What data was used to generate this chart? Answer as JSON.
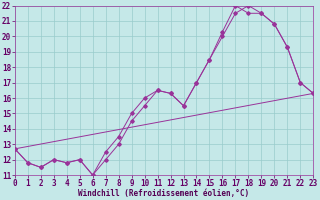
{
  "xlabel": "Windchill (Refroidissement éolien,°C)",
  "background_color": "#c5e8e8",
  "grid_color": "#99cccc",
  "line_color": "#993399",
  "xlim": [
    0,
    23
  ],
  "ylim": [
    11,
    22
  ],
  "yticks": [
    11,
    12,
    13,
    14,
    15,
    16,
    17,
    18,
    19,
    20,
    21,
    22
  ],
  "xticks": [
    0,
    1,
    2,
    3,
    4,
    5,
    6,
    7,
    8,
    9,
    10,
    11,
    12,
    13,
    14,
    15,
    16,
    17,
    18,
    19,
    20,
    21,
    22,
    23
  ],
  "line1_x": [
    0,
    1,
    2,
    3,
    4,
    5,
    6,
    7,
    8,
    9,
    10,
    11,
    12,
    13,
    14,
    15,
    16,
    17,
    18,
    19,
    20,
    21,
    22,
    23
  ],
  "line1_y": [
    12.7,
    11.8,
    11.5,
    12.0,
    11.8,
    12.0,
    11.0,
    12.0,
    13.0,
    14.5,
    15.5,
    16.5,
    16.3,
    15.5,
    17.0,
    18.5,
    20.3,
    22.0,
    21.5,
    21.5,
    20.8,
    19.3,
    17.0,
    16.3
  ],
  "line2_x": [
    0,
    1,
    2,
    3,
    4,
    5,
    6,
    7,
    8,
    9,
    10,
    11,
    12,
    13,
    14,
    15,
    16,
    17,
    18,
    19,
    20,
    21,
    22,
    23
  ],
  "line2_y": [
    12.7,
    11.8,
    11.5,
    12.0,
    11.8,
    12.0,
    11.0,
    12.5,
    13.5,
    15.0,
    16.0,
    16.5,
    16.3,
    15.5,
    17.0,
    18.5,
    20.0,
    21.5,
    22.0,
    21.5,
    20.8,
    19.3,
    17.0,
    16.3
  ],
  "line3_x": [
    0,
    23
  ],
  "line3_y": [
    12.7,
    16.3
  ],
  "tick_fontsize": 5.5,
  "xlabel_fontsize": 5.5
}
